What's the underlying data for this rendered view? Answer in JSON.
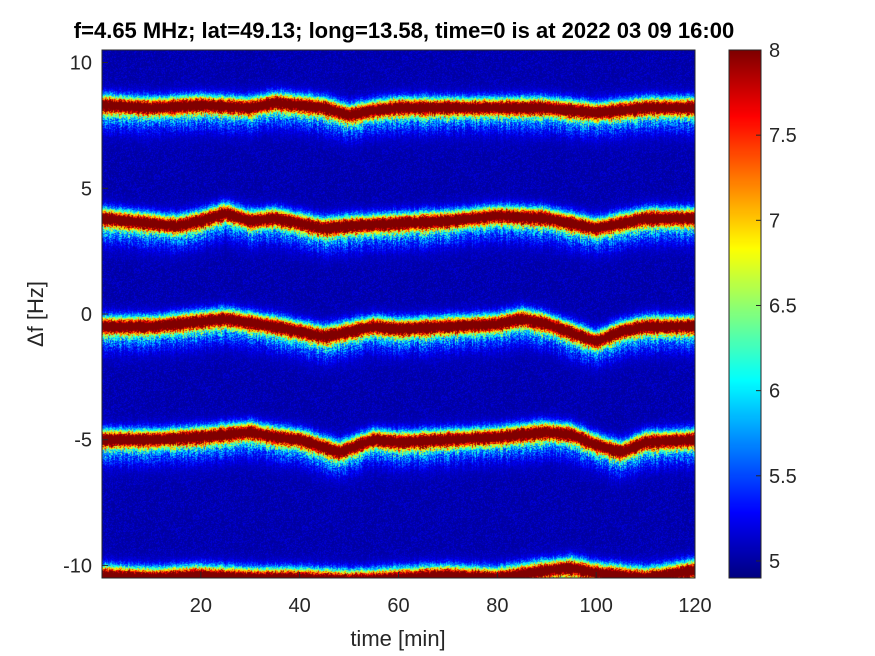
{
  "chart_data": {
    "type": "heatmap",
    "title": "f=4.65 MHz;  lat=49.13; long=13.58, time=0 is at 2022 03 09 16:00",
    "xlabel": "time [min]",
    "ylabel": "Δf [Hz]",
    "xlim": [
      0,
      120
    ],
    "ylim": [
      -10.5,
      10.5
    ],
    "xticks": [
      20,
      40,
      60,
      80,
      100,
      120
    ],
    "yticks": [
      10,
      5,
      0,
      -5,
      -10
    ],
    "colorbar": {
      "range": [
        4.9,
        8
      ],
      "ticks": [
        8,
        7.5,
        7,
        6.5,
        6,
        5.5,
        5
      ],
      "colormap": "jet"
    },
    "background_level": 5.0,
    "grid": false,
    "traces": [
      {
        "base": 8.2,
        "peak": 8,
        "t": [
          0,
          10,
          20,
          30,
          35,
          45,
          50,
          55,
          60,
          70,
          80,
          90,
          100,
          110,
          120
        ],
        "offset": [
          0.1,
          0.0,
          0.1,
          0.0,
          0.2,
          0.0,
          -0.3,
          -0.1,
          0.0,
          0.0,
          0.0,
          0.0,
          -0.2,
          0.0,
          0.0
        ]
      },
      {
        "base": 3.8,
        "peak": 8,
        "t": [
          0,
          10,
          15,
          20,
          25,
          30,
          35,
          45,
          50,
          60,
          70,
          80,
          90,
          100,
          105,
          110,
          120
        ],
        "offset": [
          0.0,
          -0.2,
          -0.3,
          -0.1,
          0.2,
          -0.1,
          0.0,
          -0.4,
          -0.3,
          -0.2,
          -0.1,
          0.1,
          0.0,
          -0.4,
          -0.2,
          0.0,
          0.0
        ]
      },
      {
        "base": -0.5,
        "peak": 8,
        "t": [
          0,
          10,
          20,
          25,
          35,
          45,
          50,
          55,
          60,
          70,
          80,
          85,
          90,
          100,
          105,
          110,
          120
        ],
        "offset": [
          0.0,
          0.0,
          0.2,
          0.3,
          0.0,
          -0.4,
          -0.2,
          0.0,
          -0.1,
          0.0,
          0.1,
          0.3,
          0.1,
          -0.6,
          -0.2,
          0.0,
          0.0
        ]
      },
      {
        "base": -5.0,
        "peak": 8,
        "t": [
          0,
          10,
          20,
          30,
          35,
          40,
          48,
          55,
          60,
          70,
          80,
          90,
          95,
          100,
          105,
          110,
          120
        ],
        "offset": [
          0.0,
          0.0,
          0.1,
          0.3,
          0.1,
          0.0,
          -0.5,
          0.0,
          -0.1,
          0.0,
          0.1,
          0.3,
          0.2,
          -0.2,
          -0.5,
          -0.1,
          0.0
        ]
      },
      {
        "base": -10.5,
        "peak": 8,
        "t": [
          0,
          10,
          20,
          30,
          40,
          50,
          60,
          70,
          80,
          90,
          95,
          100,
          110,
          120
        ],
        "offset": [
          0.1,
          0.0,
          0.1,
          0.0,
          0.0,
          -0.1,
          0.0,
          0.1,
          0.0,
          0.3,
          0.4,
          0.2,
          0.0,
          0.3
        ]
      }
    ]
  }
}
